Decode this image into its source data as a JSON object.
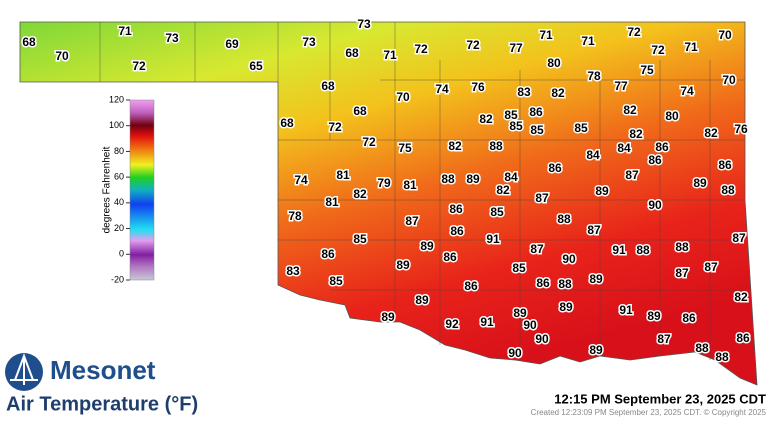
{
  "title": "Air Temperature (°F)",
  "timestamp": "12:15 PM September 23, 2025 CDT",
  "credit": "Created 12:23:09 PM September 23, 2025 CDT. © Copyright 2025",
  "logo": "Mesonet",
  "colorbar": {
    "label": "degrees Fahrenheit",
    "ticks": [
      -20,
      0,
      20,
      40,
      60,
      80,
      100,
      120
    ]
  },
  "stations": [
    68,
    70,
    71,
    73,
    72,
    69,
    65,
    73,
    73,
    68,
    71,
    72,
    72,
    77,
    71,
    71,
    72,
    72,
    71,
    70,
    80,
    75,
    78,
    77,
    70,
    68,
    70,
    74,
    76,
    83,
    82,
    74,
    68,
    68,
    72,
    82,
    85,
    86,
    85,
    85,
    85,
    82,
    80,
    82,
    82,
    76,
    72,
    75,
    82,
    88,
    84,
    84,
    86,
    86,
    86,
    86,
    74,
    81,
    79,
    81,
    88,
    89,
    84,
    82,
    87,
    89,
    88,
    82,
    81,
    89,
    87,
    90,
    78,
    87,
    86,
    85,
    88,
    86,
    91,
    87,
    85,
    89,
    87,
    91,
    88,
    88,
    87,
    86,
    86,
    90,
    89,
    85,
    87,
    87,
    83,
    85,
    89,
    86,
    86,
    88,
    89,
    82,
    89,
    89,
    89,
    91,
    89,
    86,
    92,
    91,
    90,
    90,
    87,
    86,
    90,
    89,
    88,
    88
  ]
}
